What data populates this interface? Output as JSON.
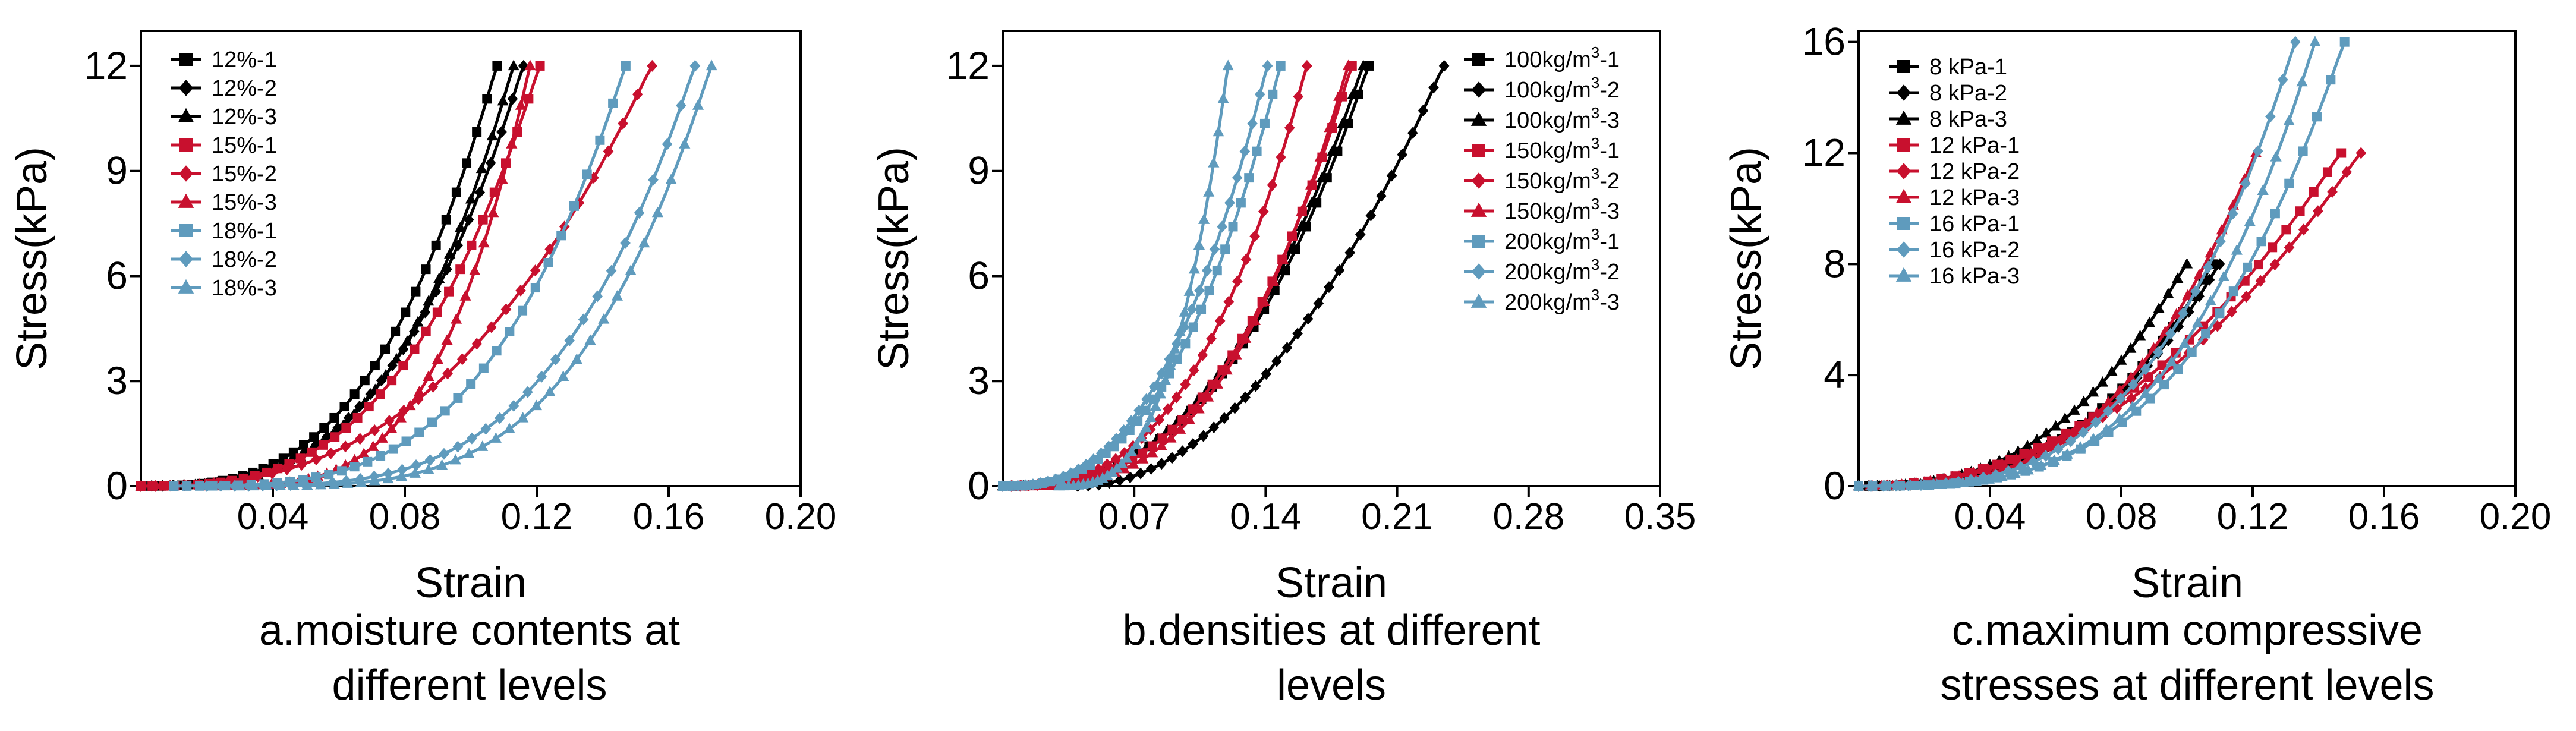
{
  "colors": {
    "black": "#000000",
    "red": "#c8102e",
    "blue": "#5f9bbd"
  },
  "chart_data": [
    {
      "type": "line",
      "ylabel": "Stress(kPa)",
      "xlabel": "Strain",
      "caption_lines": [
        "a.moisture contents at",
        "different levels"
      ],
      "xlim": [
        0.0,
        0.2
      ],
      "ylim": [
        0,
        13
      ],
      "xticks": [
        "0.04",
        "0.08",
        "0.12",
        "0.16",
        "0.20"
      ],
      "xtick_values": [
        0.04,
        0.08,
        0.12,
        0.16,
        0.2
      ],
      "yticks": [
        "0",
        "3",
        "6",
        "9",
        "12"
      ],
      "ytick_values": [
        0,
        3,
        6,
        9,
        12
      ],
      "legend_position": "top-left",
      "series": [
        {
          "name": "12%-1",
          "color": "black",
          "marker": "square",
          "x0": 0.0,
          "x1": 0.108,
          "y1": 12,
          "p": 3.0
        },
        {
          "name": "12%-2",
          "color": "black",
          "marker": "diamond",
          "x0": 0.0,
          "x1": 0.116,
          "y1": 12,
          "p": 3.0
        },
        {
          "name": "12%-3",
          "color": "black",
          "marker": "triangle",
          "x0": 0.0,
          "x1": 0.113,
          "y1": 12,
          "p": 3.2
        },
        {
          "name": "15%-1",
          "color": "red",
          "marker": "square",
          "x0": 0.0,
          "x1": 0.121,
          "y1": 12,
          "p": 3.0
        },
        {
          "name": "15%-2",
          "color": "red",
          "marker": "diamond",
          "x0": 0.0,
          "x1": 0.155,
          "y1": 12,
          "p": 2.6
        },
        {
          "name": "15%-3",
          "color": "red",
          "marker": "triangle",
          "x0": 0.02,
          "x1": 0.118,
          "y1": 12,
          "p": 3.6
        },
        {
          "name": "18%-1",
          "color": "blue",
          "marker": "square",
          "x0": 0.01,
          "x1": 0.147,
          "y1": 12,
          "p": 3.4
        },
        {
          "name": "18%-2",
          "color": "blue",
          "marker": "diamond",
          "x0": 0.02,
          "x1": 0.168,
          "y1": 12,
          "p": 3.6
        },
        {
          "name": "18%-3",
          "color": "blue",
          "marker": "triangle",
          "x0": 0.03,
          "x1": 0.173,
          "y1": 12,
          "p": 3.6
        }
      ]
    },
    {
      "type": "line",
      "ylabel": "Stress(kPa)",
      "xlabel": "Strain",
      "caption_lines": [
        "b.densities at different",
        "levels"
      ],
      "xlim": [
        0.0,
        0.35
      ],
      "ylim": [
        0,
        13
      ],
      "xticks": [
        "0.07",
        "0.14",
        "0.21",
        "0.28",
        "0.35"
      ],
      "xtick_values": [
        0.07,
        0.14,
        0.21,
        0.28,
        0.35
      ],
      "yticks": [
        "0",
        "3",
        "6",
        "9",
        "12"
      ],
      "ytick_values": [
        0,
        3,
        6,
        9,
        12
      ],
      "legend_position": "top-right",
      "series": [
        {
          "name": "100kg/m3-1",
          "name_base": "100kg/m",
          "name_sup": "3",
          "name_tail": "-1",
          "color": "black",
          "marker": "square",
          "x0": 0.0,
          "x1": 0.195,
          "y1": 12,
          "p": 2.6
        },
        {
          "name": "100kg/m3-2",
          "name_base": "100kg/m",
          "name_sup": "3",
          "name_tail": "-2",
          "color": "black",
          "marker": "diamond",
          "x0": 0.04,
          "x1": 0.235,
          "y1": 12,
          "p": 2.0
        },
        {
          "name": "100kg/m3-3",
          "name_base": "100kg/m",
          "name_sup": "3",
          "name_tail": "-3",
          "color": "black",
          "marker": "triangle",
          "x0": 0.0,
          "x1": 0.192,
          "y1": 12,
          "p": 2.6
        },
        {
          "name": "150kg/m3-1",
          "name_base": "150kg/m",
          "name_sup": "3",
          "name_tail": "-1",
          "color": "red",
          "marker": "square",
          "x0": 0.0,
          "x1": 0.186,
          "y1": 12,
          "p": 2.8
        },
        {
          "name": "150kg/m3-2",
          "name_base": "150kg/m",
          "name_sup": "3",
          "name_tail": "-2",
          "color": "red",
          "marker": "diamond",
          "x0": 0.0,
          "x1": 0.162,
          "y1": 12,
          "p": 2.8
        },
        {
          "name": "150kg/m3-3",
          "name_base": "150kg/m",
          "name_sup": "3",
          "name_tail": "-3",
          "color": "red",
          "marker": "triangle",
          "x0": 0.01,
          "x1": 0.184,
          "y1": 12,
          "p": 2.8
        },
        {
          "name": "200kg/m3-1",
          "name_base": "200kg/m",
          "name_sup": "3",
          "name_tail": "-1",
          "color": "blue",
          "marker": "square",
          "x0": 0.0,
          "x1": 0.148,
          "y1": 12,
          "p": 2.6
        },
        {
          "name": "200kg/m3-2",
          "name_base": "200kg/m",
          "name_sup": "3",
          "name_tail": "-2",
          "color": "blue",
          "marker": "diamond",
          "x0": 0.0,
          "x1": 0.141,
          "y1": 12,
          "p": 2.6
        },
        {
          "name": "200kg/m3-3",
          "name_base": "200kg/m",
          "name_sup": "3",
          "name_tail": "-3",
          "color": "blue",
          "marker": "triangle",
          "x0": 0.03,
          "x1": 0.12,
          "y1": 12,
          "p": 3.0
        }
      ]
    },
    {
      "type": "line",
      "ylabel": "Stress(kPa)",
      "xlabel": "Strain",
      "caption_lines": [
        "c.maximum compressive",
        "stresses at different levels"
      ],
      "xlim": [
        0.0,
        0.2
      ],
      "ylim": [
        0,
        16.4
      ],
      "xticks": [
        "0.04",
        "0.08",
        "0.12",
        "0.16",
        "0.20"
      ],
      "xtick_values": [
        0.04,
        0.08,
        0.12,
        0.16,
        0.2
      ],
      "yticks": [
        "0",
        "4",
        "8",
        "12",
        "16"
      ],
      "ytick_values": [
        0,
        4,
        8,
        12,
        16
      ],
      "legend_position": "top-left",
      "series": [
        {
          "name": "8 kPa-1",
          "color": "black",
          "marker": "square",
          "x0": 0.0,
          "x1": 0.108,
          "y1": 8,
          "p": 2.8
        },
        {
          "name": "8 kPa-2",
          "color": "black",
          "marker": "diamond",
          "x0": 0.0,
          "x1": 0.11,
          "y1": 8,
          "p": 2.8
        },
        {
          "name": "8 kPa-3",
          "color": "black",
          "marker": "triangle",
          "x0": 0.0,
          "x1": 0.1,
          "y1": 8,
          "p": 2.6
        },
        {
          "name": "12 kPa-1",
          "color": "red",
          "marker": "square",
          "x0": 0.0,
          "x1": 0.147,
          "y1": 12,
          "p": 2.2
        },
        {
          "name": "12 kPa-2",
          "color": "red",
          "marker": "diamond",
          "x0": 0.0,
          "x1": 0.153,
          "y1": 12,
          "p": 2.2
        },
        {
          "name": "12 kPa-3",
          "color": "red",
          "marker": "triangle",
          "x0": 0.0,
          "x1": 0.121,
          "y1": 12,
          "p": 3.0
        },
        {
          "name": "16 kPa-1",
          "color": "blue",
          "marker": "square",
          "x0": 0.0,
          "x1": 0.148,
          "y1": 16,
          "p": 3.2
        },
        {
          "name": "16 kPa-2",
          "color": "blue",
          "marker": "diamond",
          "x0": 0.0,
          "x1": 0.133,
          "y1": 16,
          "p": 3.2
        },
        {
          "name": "16 kPa-3",
          "color": "blue",
          "marker": "triangle",
          "x0": 0.0,
          "x1": 0.139,
          "y1": 16,
          "p": 3.4
        }
      ]
    }
  ]
}
